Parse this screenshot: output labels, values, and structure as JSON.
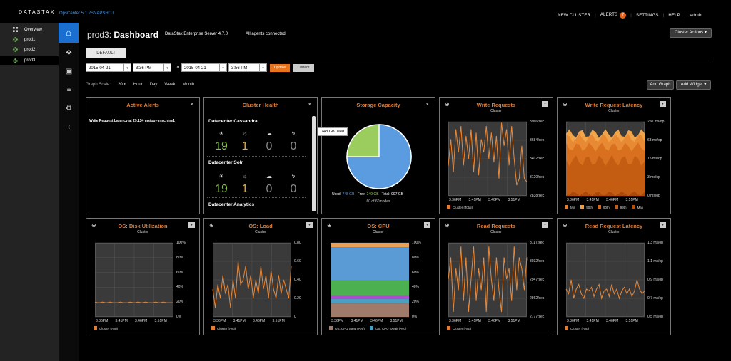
{
  "app": {
    "logo": "DATASTAX",
    "version": "OpsCenter 5.1.2SNAPSHOT"
  },
  "topnav": {
    "new_cluster": "NEW CLUSTER",
    "alerts": "ALERTS",
    "alert_count": "7",
    "settings": "SETTINGS",
    "help": "HELP",
    "user": "admin"
  },
  "sidebar": {
    "items": [
      {
        "label": "Overview"
      },
      {
        "label": "prod1"
      },
      {
        "label": "prod2"
      },
      {
        "label": "prod3"
      }
    ]
  },
  "header": {
    "cluster": "prod3:",
    "title": "Dashboard",
    "server": "DataStax Enterprise Server 4.7.0",
    "agents": "All agents connected",
    "cluster_actions": "Cluster Actions"
  },
  "tabs": [
    {
      "label": "DEFAULT"
    }
  ],
  "range": {
    "from_date": "2015-04-21",
    "from_time": "3:36 PM",
    "to_label": "to",
    "to_date": "2015-04-21",
    "to_time": "3:56 PM",
    "update": "Update",
    "current": "Current"
  },
  "scale": {
    "label": "Graph Scale:",
    "options": [
      "20m",
      "Hour",
      "Day",
      "Week",
      "Month"
    ]
  },
  "actions": {
    "add_graph": "Add Graph",
    "add_widget": "Add Widget"
  },
  "alerts_panel": {
    "title": "Active Alerts",
    "item": "Write Request Latency at 29.134 ms/op - machine1"
  },
  "health_panel": {
    "title": "Cluster Health",
    "dcs": [
      {
        "name": "Datacenter Cassandra",
        "values": [
          "19",
          "1",
          "0",
          "0"
        ]
      },
      {
        "name": "Datacenter Solr",
        "values": [
          "19",
          "1",
          "0",
          "0"
        ]
      },
      {
        "name": "Datacenter Analytics"
      }
    ]
  },
  "storage_panel": {
    "title": "Storage Capacity",
    "tooltip": "748 GB used",
    "used_label": "Used:",
    "used": "748 GB",
    "free_label": "Free:",
    "free": "249 GB",
    "total_label": "Total:",
    "total": "997 GB",
    "nodes": "60 of 60 nodes",
    "used_fraction": 0.75
  },
  "xticks": [
    "3:36PM",
    "3:41PM",
    "3:46PM",
    "3:51PM"
  ],
  "charts": [
    {
      "title": "Write Requests",
      "sub": "Cluster",
      "yticks": [
        "3966/sec",
        "3684/sec",
        "3402/sec",
        "3120/sec",
        "2838/sec"
      ],
      "legend": [
        "Cluster (Total)"
      ],
      "ylim": [
        2838,
        3966
      ],
      "values": [
        3300,
        3700,
        3200,
        3850,
        3500,
        3900,
        3300,
        3750,
        3400,
        3850,
        3200,
        3800,
        3150,
        3700,
        3500,
        3900,
        3400,
        3800,
        3350,
        3750,
        3100,
        3950,
        3600,
        3850,
        3300,
        3900,
        3400,
        3000,
        3100,
        3600,
        3100,
        3050
      ]
    },
    {
      "title": "Write Request Latency",
      "sub": "Cluster",
      "yticks": [
        "250 ms/op",
        "63 ms/op",
        "15 ms/op",
        "3 ms/op",
        "0 ms/op"
      ],
      "legend": [
        "Min",
        "50th",
        "90th",
        "99th",
        "Max"
      ]
    },
    {
      "title": "OS: Disk Utilization",
      "sub": "Cluster",
      "yticks": [
        "100%",
        "80%",
        "60%",
        "40%",
        "20%",
        "0%"
      ],
      "legend": [
        "Cluster (Avg)"
      ],
      "ylim": [
        0,
        100
      ],
      "values": [
        20,
        19,
        19,
        20,
        19,
        19,
        20,
        19,
        19,
        19,
        20,
        19,
        19,
        19,
        20,
        19,
        19,
        20,
        19,
        19,
        20,
        19,
        19,
        19,
        20,
        19,
        19,
        20,
        19,
        19,
        19,
        19
      ]
    },
    {
      "title": "OS: Load",
      "sub": "Cluster",
      "yticks": [
        "0.80",
        "0.60",
        "0.40",
        "0.20",
        "0"
      ],
      "legend": [
        "Cluster (Avg)"
      ],
      "ylim": [
        0,
        0.8
      ],
      "values": [
        0.3,
        0.1,
        0.35,
        0.2,
        0.45,
        0.25,
        0.35,
        0.1,
        0.4,
        0.2,
        0.6,
        0.35,
        0.4,
        0.55,
        0.3,
        0.45,
        0.2,
        0.4,
        0.25,
        0.55,
        0.3,
        0.45,
        0.2,
        0.5,
        0.3,
        0.2,
        0.45,
        0.25,
        0.4,
        0.3,
        0.2,
        0.55
      ]
    },
    {
      "title": "OS: CPU",
      "sub": "Cluster",
      "yticks": [
        "100%",
        "80%",
        "60%",
        "40%",
        "20%",
        "0%"
      ],
      "legend": [
        "OS: CPU Steal (Avg)",
        "OS: CPU Iowait (Avg)"
      ]
    },
    {
      "title": "Read Requests",
      "sub": "Cluster",
      "yticks": [
        "3117/sec",
        "3032/sec",
        "2947/sec",
        "2862/sec",
        "2777/sec"
      ],
      "legend": [
        "Cluster (Avg)"
      ],
      "ylim": [
        2777,
        3117
      ],
      "values": [
        2950,
        3050,
        2800,
        3000,
        2900,
        3100,
        2850,
        3050,
        2800,
        2950,
        3100,
        2850,
        3000,
        2900,
        3050,
        2800,
        3100,
        2950,
        2850,
        3050,
        2900,
        2800,
        3050,
        2950,
        3000,
        2850,
        3100,
        2900,
        3050,
        3000,
        2900,
        3050
      ]
    },
    {
      "title": "Read Request Latency",
      "sub": "Cluster",
      "yticks": [
        "1.3 ms/op",
        "1.1 ms/op",
        "0.9 ms/op",
        "0.7 ms/op",
        "0.5 ms/op"
      ],
      "legend": [
        "Cluster (Avg)"
      ],
      "ylim": [
        0.5,
        1.3
      ],
      "values": [
        0.8,
        0.75,
        0.9,
        0.7,
        0.8,
        0.85,
        0.75,
        0.7,
        0.8,
        0.78,
        0.82,
        0.72,
        0.8,
        0.85,
        0.7,
        0.78,
        0.8,
        0.72,
        0.85,
        0.75,
        0.8,
        0.7,
        0.78,
        0.82,
        0.75,
        0.8,
        0.72,
        0.78,
        0.9,
        0.8,
        0.75,
        0.78
      ]
    }
  ],
  "colors": {
    "accent": "#e37c33",
    "line": "#e8893a",
    "primary": "#1a6fd0",
    "pie_used": "#5b9be0",
    "pie_free": "#9bcc5e"
  }
}
